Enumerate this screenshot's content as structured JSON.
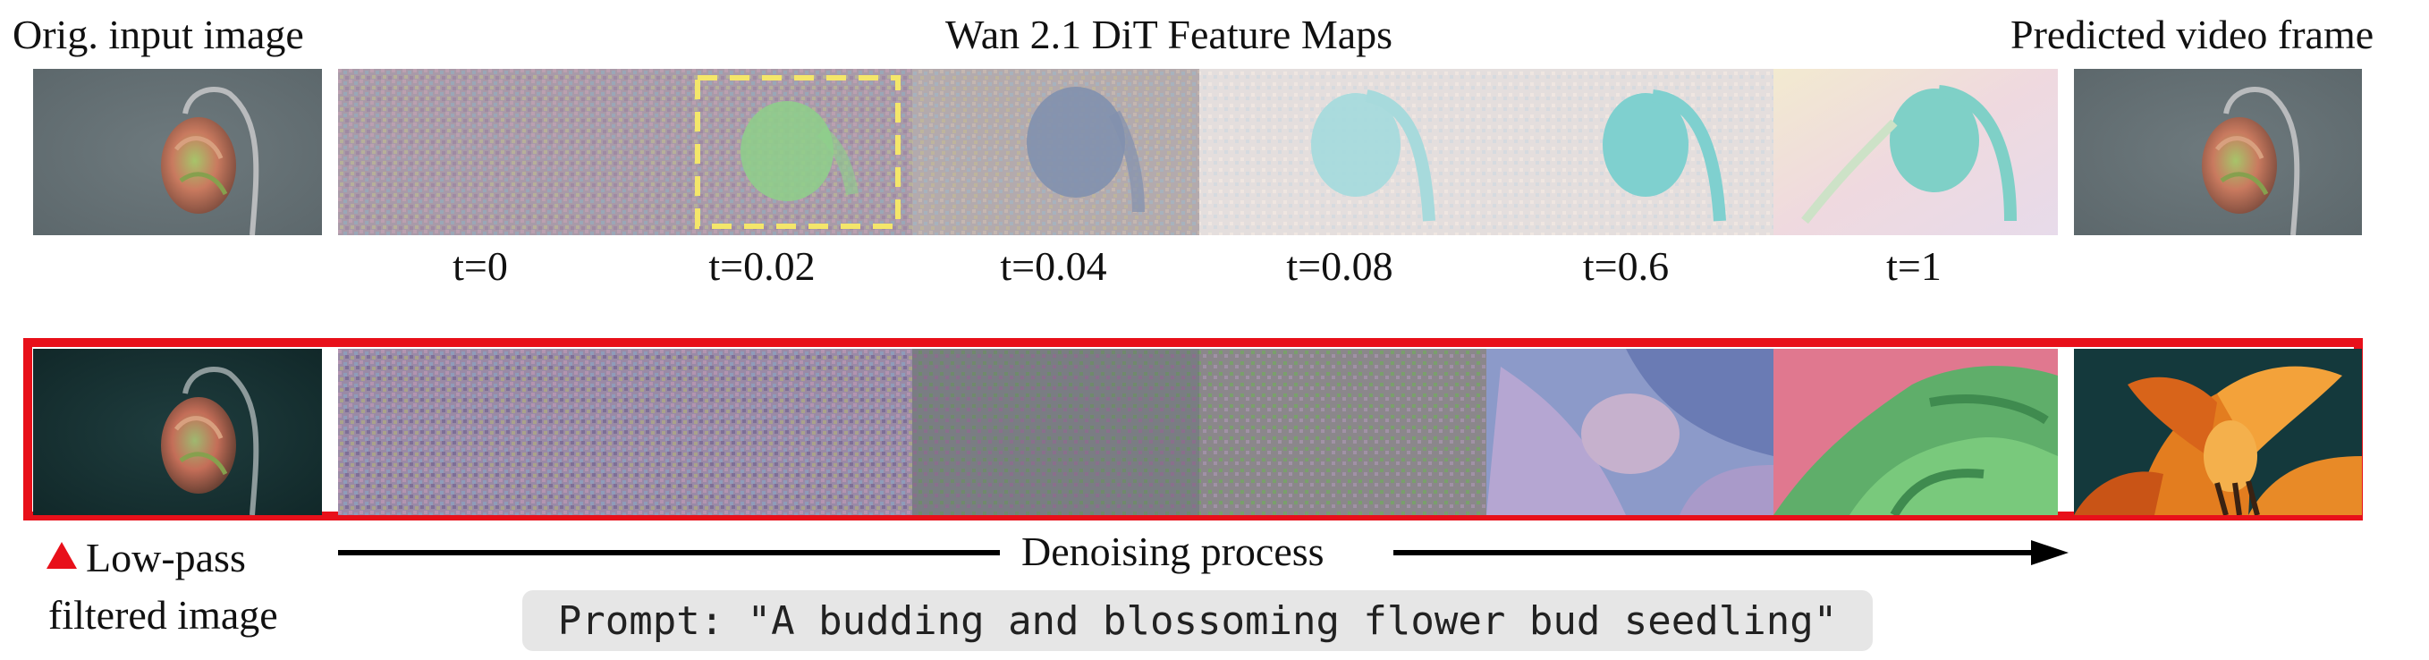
{
  "labels": {
    "orig_input": "Orig. input image",
    "feature_maps": "Wan 2.1 DiT Feature Maps",
    "predicted": "Predicted video frame",
    "low_pass_line1": "Low-pass",
    "low_pass_line2": "filtered image",
    "denoising": "Denoising process"
  },
  "timesteps": [
    "t=0",
    "t=0.02",
    "t=0.04",
    "t=0.08",
    "t=0.6",
    "t=1"
  ],
  "prompt": "Prompt: \"A budding and blossoming flower bud seedling\"",
  "colors": {
    "highlight_border": "#e8101a",
    "dashed_box": "#f4e66a",
    "arrow": "#000000",
    "prompt_bg": "#e6e6e6"
  }
}
